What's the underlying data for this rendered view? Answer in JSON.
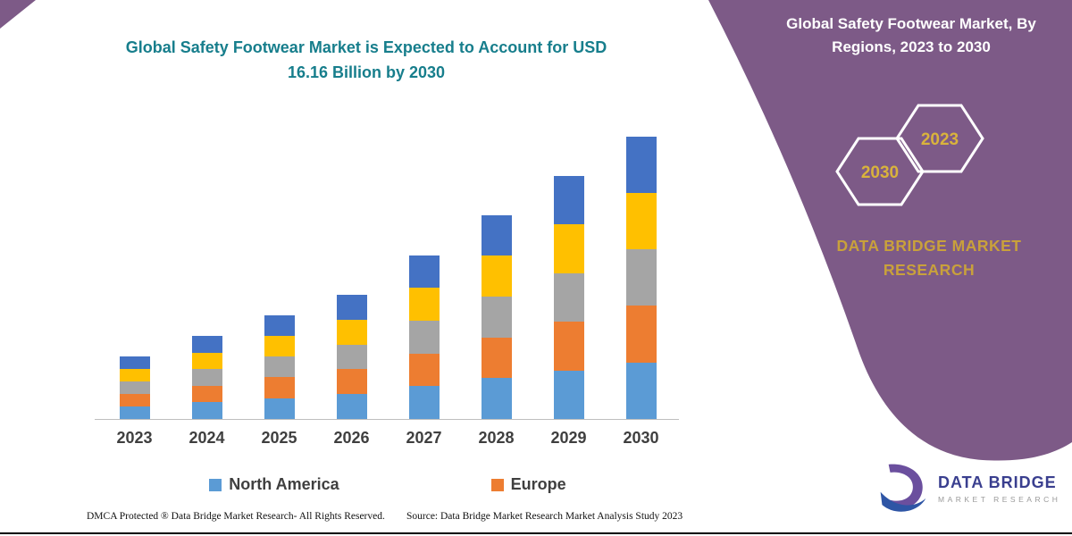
{
  "left": {
    "title": "Global Safety Footwear Market is Expected to Account for USD 16.16 Billion by 2030"
  },
  "right_panel": {
    "title": "Global Safety Footwear Market, By Regions, 2023 to 2030",
    "hexagons": [
      {
        "year": "2030"
      },
      {
        "year": "2023"
      }
    ],
    "brand": "DATA BRIDGE MARKET RESEARCH",
    "panel_color": "#7D5A87",
    "accent_gold": "#C9A13B"
  },
  "legend": [
    {
      "label": "North America",
      "color": "#5B9BD5"
    },
    {
      "label": "Europe",
      "color": "#ED7D31"
    }
  ],
  "footer": {
    "left": "DMCA Protected ® Data Bridge Market Research-  All Rights Reserved.",
    "right": "Source: Data Bridge Market Research  Market Analysis Study 2023"
  },
  "logo": {
    "name": "DATA BRIDGE",
    "sub": "MARKET RESEARCH"
  },
  "chart_data": {
    "type": "bar",
    "subtype": "stacked",
    "title": "Global Safety Footwear Market is Expected to Account for USD 16.16 Billion by 2030",
    "unit": "USD Billion",
    "categories": [
      "2023",
      "2024",
      "2025",
      "2026",
      "2027",
      "2028",
      "2029",
      "2030"
    ],
    "totals": [
      3.6,
      4.75,
      5.95,
      7.1,
      9.35,
      11.65,
      13.9,
      16.16
    ],
    "series": [
      {
        "name": "North America",
        "color": "#5B9BD5",
        "values": [
          0.72,
          0.95,
          1.19,
          1.42,
          1.87,
          2.33,
          2.78,
          3.23
        ]
      },
      {
        "name": "Europe",
        "color": "#ED7D31",
        "values": [
          0.72,
          0.95,
          1.19,
          1.42,
          1.87,
          2.33,
          2.78,
          3.23
        ]
      },
      {
        "name": "",
        "color": "#A5A5A5",
        "values": [
          0.72,
          0.95,
          1.19,
          1.42,
          1.87,
          2.33,
          2.78,
          3.23
        ]
      },
      {
        "name": "",
        "color": "#FFC000",
        "values": [
          0.72,
          0.95,
          1.19,
          1.42,
          1.87,
          2.33,
          2.78,
          3.23
        ]
      },
      {
        "name": "",
        "color": "#4472C4",
        "values": [
          0.72,
          0.95,
          1.19,
          1.42,
          1.87,
          2.33,
          2.78,
          3.232
        ]
      }
    ],
    "ylim": [
      0,
      16.16
    ],
    "gridlines": false,
    "legend_position": "bottom",
    "legend_visible_entries": [
      "North America",
      "Europe"
    ]
  }
}
